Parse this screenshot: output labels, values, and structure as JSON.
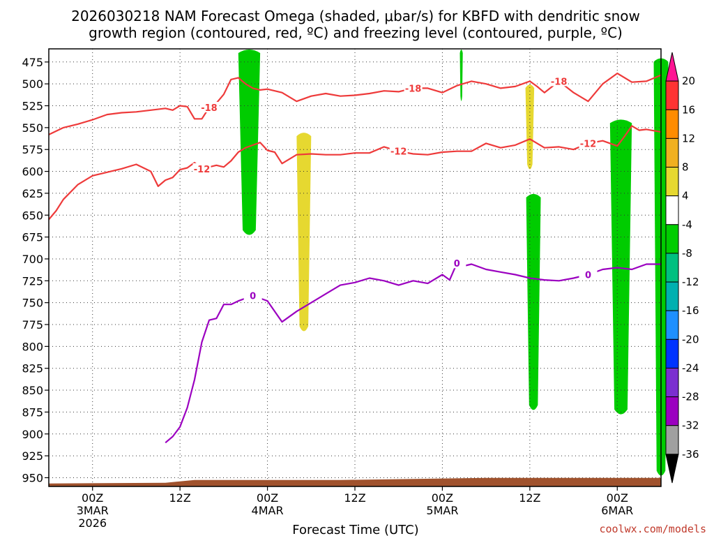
{
  "title": {
    "line1": "2026030218 NAM Forecast Omega (shaded, μbar/s) for KBFD with dendritic snow",
    "line2": "growth region (contoured, red, ºC) and freezing level (contoured, purple, ºC)"
  },
  "xlabel": "Forecast Time (UTC)",
  "credit": "coolwx.com/models",
  "chart_data": {
    "type": "time-height cross section",
    "title": "2026030218 NAM Forecast Omega (shaded, μbar/s) for KBFD with dendritic snow growth region (contoured, red, ºC) and freezing level (contoured, purple, ºC)",
    "xlabel": "Forecast Time (UTC)",
    "ylabel": "",
    "x_unit": "hours from 2026-03-02 18Z",
    "xlim": [
      0,
      84
    ],
    "ylim": [
      460,
      960
    ],
    "y_inverted": true,
    "y_ticks": [
      475,
      500,
      525,
      550,
      575,
      600,
      625,
      650,
      675,
      700,
      725,
      750,
      775,
      800,
      825,
      850,
      875,
      900,
      925,
      950
    ],
    "x_ticks": [
      {
        "x": 6,
        "lines": [
          "00Z",
          "3MAR",
          "2026"
        ]
      },
      {
        "x": 18,
        "lines": [
          "12Z"
        ]
      },
      {
        "x": 30,
        "lines": [
          "00Z",
          "4MAR"
        ]
      },
      {
        "x": 42,
        "lines": [
          "12Z"
        ]
      },
      {
        "x": 54,
        "lines": [
          "00Z",
          "5MAR"
        ]
      },
      {
        "x": 66,
        "lines": [
          "12Z"
        ]
      },
      {
        "x": 78,
        "lines": [
          "00Z",
          "6MAR"
        ]
      }
    ],
    "grid": true,
    "colorbar": {
      "levels": [
        20,
        16,
        12,
        8,
        4,
        -4,
        -8,
        -12,
        -16,
        -20,
        -24,
        -28,
        -32,
        -36
      ],
      "colors": [
        "#ff1493",
        "#ff3333",
        "#ff8c00",
        "#f0b020",
        "#e6d830",
        "#ffffff",
        "#00cc00",
        "#00c080",
        "#00b0b0",
        "#1e90ff",
        "#0033ff",
        "#7b2fd0",
        "#9b00c0",
        "#a0a0a0",
        "#000000"
      ],
      "position": "right"
    },
    "series": [
      {
        "name": "-18",
        "color": "#ee3a3a",
        "x": [
          0,
          2,
          4,
          6,
          8,
          10,
          12,
          14,
          16,
          17,
          18,
          19,
          20,
          21,
          22,
          23,
          24,
          25,
          26,
          27,
          28,
          29,
          30,
          32,
          34,
          36,
          38,
          40,
          42,
          44,
          46,
          48,
          50,
          52,
          54,
          56,
          58,
          60,
          62,
          64,
          65,
          66,
          67,
          68,
          70,
          72,
          74,
          76,
          78,
          80,
          82,
          84
        ],
        "y": [
          558,
          550,
          546,
          541,
          535,
          533,
          532,
          530,
          528,
          530,
          525,
          526,
          540,
          540,
          527,
          522,
          512,
          495,
          493,
          500,
          505,
          507,
          506,
          510,
          520,
          514,
          511,
          514,
          513,
          511,
          508,
          509,
          505,
          505,
          510,
          502,
          497,
          500,
          505,
          503,
          500,
          497,
          503,
          510,
          497,
          510,
          520,
          500,
          488,
          498,
          497,
          490
        ]
      },
      {
        "name": "-12",
        "color": "#ee3a3a",
        "x": [
          0,
          1,
          2,
          4,
          6,
          8,
          10,
          12,
          14,
          15,
          16,
          17,
          18,
          19,
          20,
          21,
          22,
          23,
          24,
          25,
          26,
          27,
          28,
          29,
          30,
          31,
          32,
          34,
          36,
          38,
          40,
          42,
          44,
          46,
          48,
          50,
          52,
          54,
          56,
          58,
          60,
          62,
          64,
          66,
          68,
          70,
          72,
          74,
          76,
          78,
          79,
          80,
          81,
          82,
          84
        ],
        "y": [
          655,
          645,
          632,
          615,
          605,
          601,
          597,
          592,
          600,
          617,
          610,
          607,
          598,
          596,
          590,
          597,
          595,
          593,
          595,
          588,
          578,
          573,
          570,
          567,
          576,
          578,
          591,
          581,
          580,
          581,
          581,
          579,
          579,
          572,
          577,
          580,
          581,
          578,
          577,
          577,
          568,
          573,
          570,
          563,
          573,
          572,
          575,
          568,
          565,
          571,
          560,
          548,
          553,
          552,
          555
        ]
      },
      {
        "name": "0",
        "color": "#9b00c0",
        "x": [
          16,
          17,
          18,
          19,
          20,
          21,
          22,
          23,
          24,
          25,
          26,
          28,
          30,
          32,
          34,
          36,
          38,
          40,
          42,
          44,
          46,
          48,
          50,
          52,
          54,
          55,
          56,
          57,
          58,
          60,
          62,
          64,
          66,
          68,
          70,
          72,
          74,
          76,
          78,
          80,
          82,
          84
        ],
        "y": [
          910,
          903,
          892,
          870,
          838,
          795,
          770,
          768,
          752,
          752,
          748,
          742,
          748,
          772,
          760,
          750,
          740,
          730,
          727,
          722,
          725,
          730,
          725,
          728,
          718,
          724,
          705,
          708,
          706,
          712,
          715,
          718,
          722,
          724,
          725,
          722,
          718,
          712,
          710,
          712,
          706,
          706
        ]
      }
    ],
    "shaded_regions": [
      {
        "value": "-4 to -8",
        "color": "#00cc00",
        "x": [
          26,
          29
        ],
        "p": [
          460,
          675
        ]
      },
      {
        "value": "4 to 8",
        "color": "#e6d830",
        "x": [
          34,
          36
        ],
        "p": [
          555,
          785
        ]
      },
      {
        "value": "-4 to -8",
        "color": "#00cc00",
        "x": [
          56.4,
          56.8
        ],
        "p": [
          460,
          522
        ]
      },
      {
        "value": "4 to 8",
        "color": "#e6d830",
        "x": [
          65.4,
          66.6
        ],
        "p": [
          500,
          600
        ]
      },
      {
        "value": "-4 to -8",
        "color": "#00cc00",
        "x": [
          65.5,
          67.5
        ],
        "p": [
          625,
          875
        ]
      },
      {
        "value": "-4 to -8",
        "color": "#00cc00",
        "x": [
          77,
          80
        ],
        "p": [
          540,
          880
        ]
      },
      {
        "value": "-4 to -8",
        "color": "#00cc00",
        "x": [
          83,
          85
        ],
        "p": [
          470,
          950
        ]
      }
    ],
    "terrain": {
      "color": "#a0522d",
      "pressure_hPa": 955
    }
  }
}
